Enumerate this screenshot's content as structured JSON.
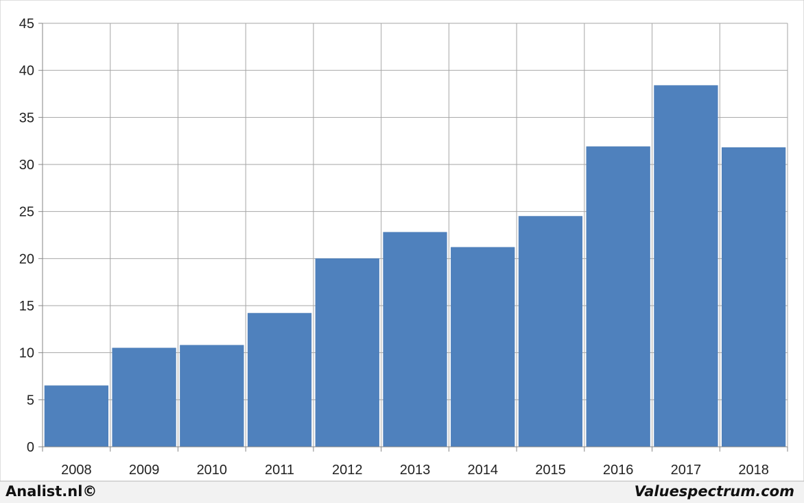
{
  "chart_data": {
    "type": "bar",
    "categories": [
      "2008",
      "2009",
      "2010",
      "2011",
      "2012",
      "2013",
      "2014",
      "2015",
      "2016",
      "2017",
      "2018"
    ],
    "values": [
      6.5,
      10.5,
      10.8,
      14.2,
      20.0,
      22.8,
      21.2,
      24.5,
      31.9,
      38.4,
      31.8
    ],
    "title": "",
    "xlabel": "",
    "ylabel": "",
    "ylim": [
      0,
      45
    ],
    "yticks": [
      "0",
      "5",
      "10",
      "15",
      "20",
      "25",
      "30",
      "35",
      "40",
      "45"
    ],
    "grid": true,
    "bar_color": "#4f81bd"
  },
  "footer": {
    "left_text": "Analist.nl©",
    "right_text": "Valuespectrum.com"
  }
}
